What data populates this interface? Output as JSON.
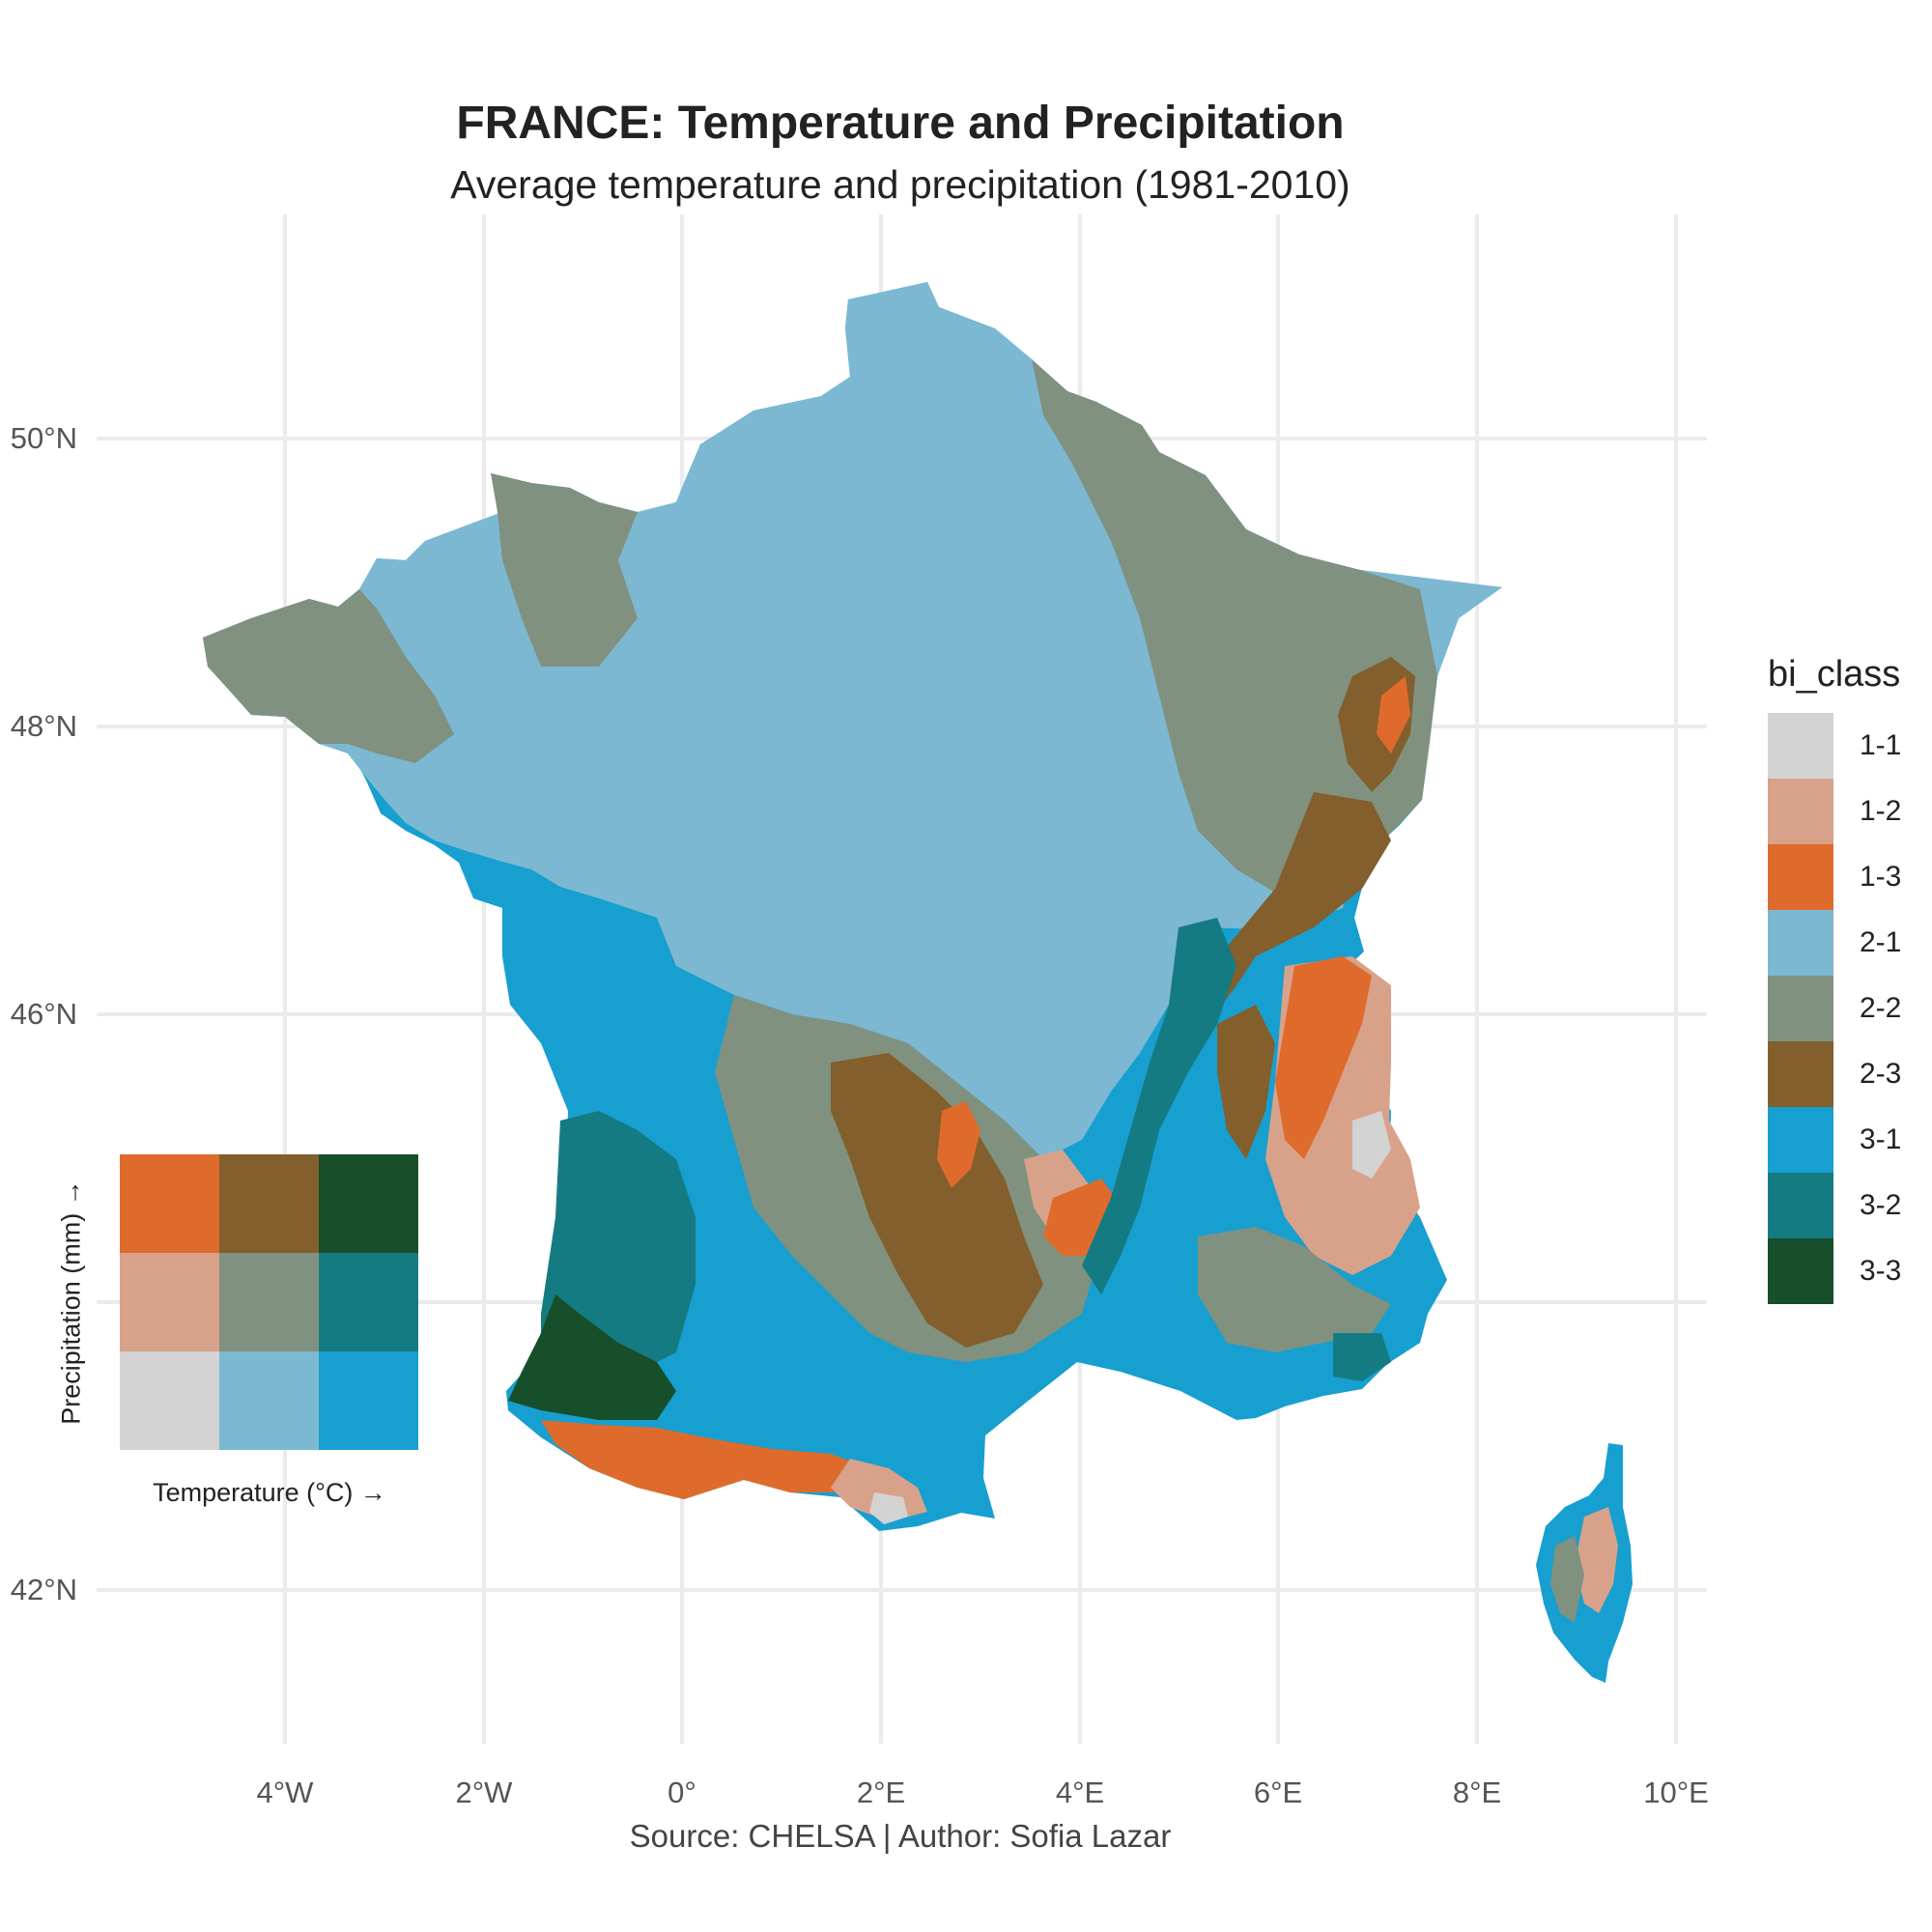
{
  "title": "FRANCE: Temperature and Precipitation",
  "subtitle": "Average temperature and precipitation (1981-2010)",
  "caption": "Source: CHELSA | Author: Sofia Lazar",
  "x_ticks": [
    "4°W",
    "2°W",
    "0°",
    "2°E",
    "4°E",
    "6°E",
    "8°E",
    "10°E"
  ],
  "y_ticks": [
    "50°N",
    "48°N",
    "46°N",
    "42°N"
  ],
  "legend": {
    "title": "bi_class",
    "items": [
      {
        "label": "1-1",
        "color": "#d3d3d3"
      },
      {
        "label": "1-2",
        "color": "#d8a28a"
      },
      {
        "label": "1-3",
        "color": "#de6b2c"
      },
      {
        "label": "2-1",
        "color": "#7db8d2"
      },
      {
        "label": "2-2",
        "color": "#80917f"
      },
      {
        "label": "2-3",
        "color": "#825f2c"
      },
      {
        "label": "3-1",
        "color": "#179fd0"
      },
      {
        "label": "3-2",
        "color": "#157b82"
      },
      {
        "label": "3-3",
        "color": "#174f2a"
      }
    ]
  },
  "inset": {
    "x_label": "Temperature (°C) →",
    "y_label": "Precipitation (mm) →"
  }
}
